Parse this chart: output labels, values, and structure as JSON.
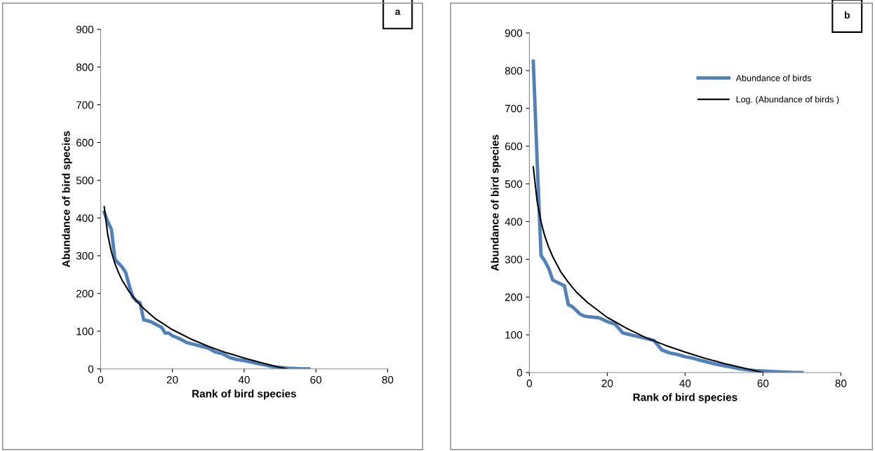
{
  "chart_data": [
    {
      "type": "line",
      "xlabel": "Rank of bird species",
      "ylabel": "Abundance of bird species",
      "annotations": [
        "a"
      ],
      "xlim": [
        0,
        80
      ],
      "xticks": [
        0,
        20,
        40,
        60,
        80
      ],
      "ylim": [
        0,
        900
      ],
      "yticks": [
        0,
        100,
        200,
        300,
        400,
        500,
        600,
        700,
        800,
        900
      ],
      "grid": false,
      "legend": false,
      "series": [
        {
          "color": "#4f81bd",
          "x": [
            1,
            2,
            3,
            4,
            5,
            6,
            7,
            8,
            9,
            10,
            11,
            12,
            13,
            14,
            15,
            16,
            17,
            18,
            19,
            20,
            22,
            24,
            26,
            28,
            30,
            32,
            34,
            36,
            38,
            40,
            42,
            44,
            46,
            48,
            50,
            52,
            54,
            56,
            58
          ],
          "values": [
            415,
            390,
            370,
            290,
            280,
            270,
            255,
            220,
            190,
            180,
            175,
            130,
            128,
            125,
            120,
            115,
            110,
            95,
            95,
            88,
            80,
            70,
            65,
            60,
            55,
            45,
            40,
            30,
            25,
            22,
            18,
            14,
            10,
            6,
            4,
            2,
            1,
            0,
            0
          ]
        },
        {
          "color": "#000000",
          "x": [
            1,
            2,
            3,
            4,
            5,
            6,
            8,
            10,
            12,
            15,
            20,
            25,
            30,
            35,
            40,
            45,
            50,
            52
          ],
          "values": [
            430,
            355,
            310,
            279,
            255,
            235,
            204,
            180,
            160,
            135,
            104,
            80,
            60,
            43,
            29,
            16,
            4,
            0
          ]
        }
      ]
    },
    {
      "type": "line",
      "xlabel": "Rank of bird species",
      "ylabel": "Abundance of bird species",
      "annotations": [
        "b"
      ],
      "xlim": [
        0,
        80
      ],
      "xticks": [
        0,
        20,
        40,
        60,
        80
      ],
      "ylim": [
        0,
        900
      ],
      "yticks": [
        0,
        100,
        200,
        300,
        400,
        500,
        600,
        700,
        800,
        900
      ],
      "grid": false,
      "legend": "top right",
      "series": [
        {
          "name": "Abundance of birds",
          "color": "#4f81bd",
          "x": [
            1,
            2,
            3,
            4,
            5,
            6,
            7,
            8,
            9,
            10,
            11,
            12,
            13,
            14,
            15,
            16,
            18,
            20,
            22,
            24,
            26,
            28,
            30,
            32,
            34,
            36,
            38,
            40,
            42,
            44,
            46,
            48,
            50,
            52,
            54,
            56,
            58,
            60,
            62,
            64,
            66,
            68,
            70
          ],
          "values": [
            825,
            560,
            310,
            295,
            275,
            245,
            240,
            235,
            230,
            180,
            175,
            165,
            155,
            150,
            148,
            147,
            145,
            135,
            128,
            105,
            100,
            95,
            90,
            85,
            60,
            52,
            48,
            42,
            38,
            32,
            27,
            22,
            18,
            14,
            10,
            7,
            5,
            4,
            3,
            2,
            1,
            0,
            0
          ]
        },
        {
          "name": "Log. (Abundance of birds )",
          "color": "#000000",
          "x": [
            1,
            2,
            3,
            4,
            5,
            6,
            8,
            10,
            12,
            15,
            20,
            25,
            30,
            35,
            40,
            45,
            50,
            55,
            60
          ],
          "values": [
            545,
            453,
            399,
            360,
            331,
            307,
            268,
            239,
            214,
            185,
            146,
            117,
            92,
            72,
            54,
            38,
            24,
            12,
            0
          ]
        }
      ]
    }
  ]
}
